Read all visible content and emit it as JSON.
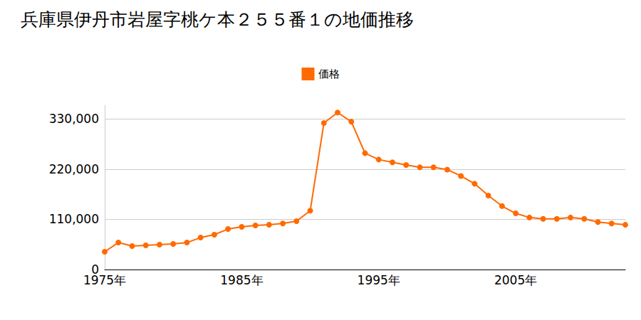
{
  "chart_data": {
    "type": "line",
    "title": "兵庫県伊丹市岩屋字桃ケ本２５５番１の地価推移",
    "categories": [
      "1975年",
      null,
      null,
      null,
      null,
      null,
      null,
      null,
      null,
      null,
      "1985年",
      null,
      null,
      null,
      null,
      null,
      null,
      null,
      null,
      null,
      "1995年",
      null,
      null,
      null,
      null,
      null,
      null,
      null,
      null,
      null,
      "2005年",
      null,
      null,
      null,
      null,
      null,
      null,
      null,
      null
    ],
    "series": [
      {
        "name": "価格",
        "color": "#ff6a00",
        "marker": "circle",
        "values": [
          38900,
          59100,
          51400,
          52900,
          54500,
          56000,
          59100,
          70000,
          76300,
          88700,
          93400,
          96500,
          98100,
          101000,
          106000,
          129000,
          321000,
          344000,
          324000,
          255000,
          241000,
          235000,
          229000,
          224000,
          224000,
          219000,
          205000,
          188000,
          162000,
          139000,
          123000,
          114000,
          111000,
          111000,
          114000,
          111000,
          104000,
          101000,
          98000
        ]
      }
    ],
    "ylim": [
      0,
      360000
    ],
    "yticks": [
      0,
      {
        "value": 110000,
        "label": "110,000"
      },
      {
        "value": 220000,
        "label": "220,000"
      },
      {
        "value": 330000,
        "label": "330,000"
      }
    ],
    "grid": true,
    "legend": "top"
  }
}
